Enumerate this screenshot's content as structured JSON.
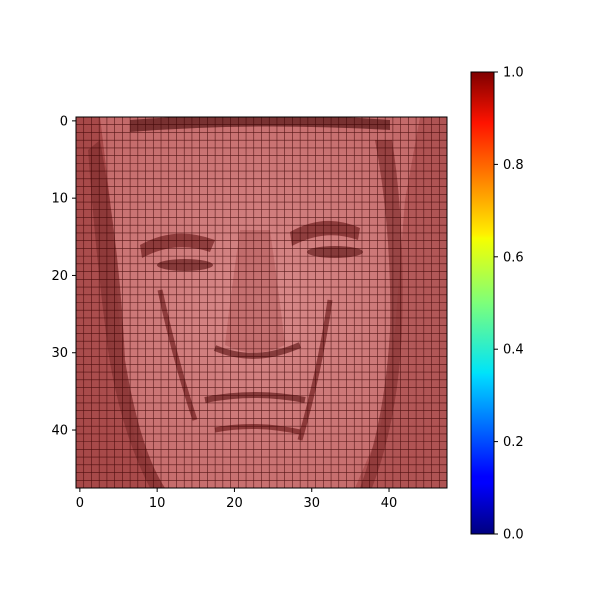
{
  "chart_data": {
    "type": "heatmap",
    "title": "",
    "xlabel": "",
    "ylabel": "",
    "xlim": [
      -0.5,
      47.5
    ],
    "ylim": [
      47.5,
      -0.5
    ],
    "grid_size": [
      48,
      48
    ],
    "x_ticks": [
      0,
      10,
      20,
      30,
      40
    ],
    "x_tick_labels": [
      "0",
      "10",
      "20",
      "30",
      "40"
    ],
    "y_ticks": [
      0,
      10,
      20,
      30,
      40
    ],
    "y_tick_labels": [
      "0",
      "10",
      "20",
      "30",
      "40"
    ],
    "colorbar": {
      "colormap": "jet",
      "range": [
        0.0,
        1.0
      ],
      "ticks": [
        0.0,
        0.2,
        0.4,
        0.6,
        0.8,
        1.0
      ],
      "tick_labels": [
        "0.0",
        "0.2",
        "0.4",
        "0.6",
        "0.8",
        "1.0"
      ]
    },
    "content": "grayscale face image overlaid with uniform dark red (value ~1.0) semi-transparent mask and cell grid",
    "overlay_value": 1.0
  },
  "colors": {
    "overlay": "#800000",
    "grid_line": "#3a0000",
    "background": "#ffffff"
  }
}
